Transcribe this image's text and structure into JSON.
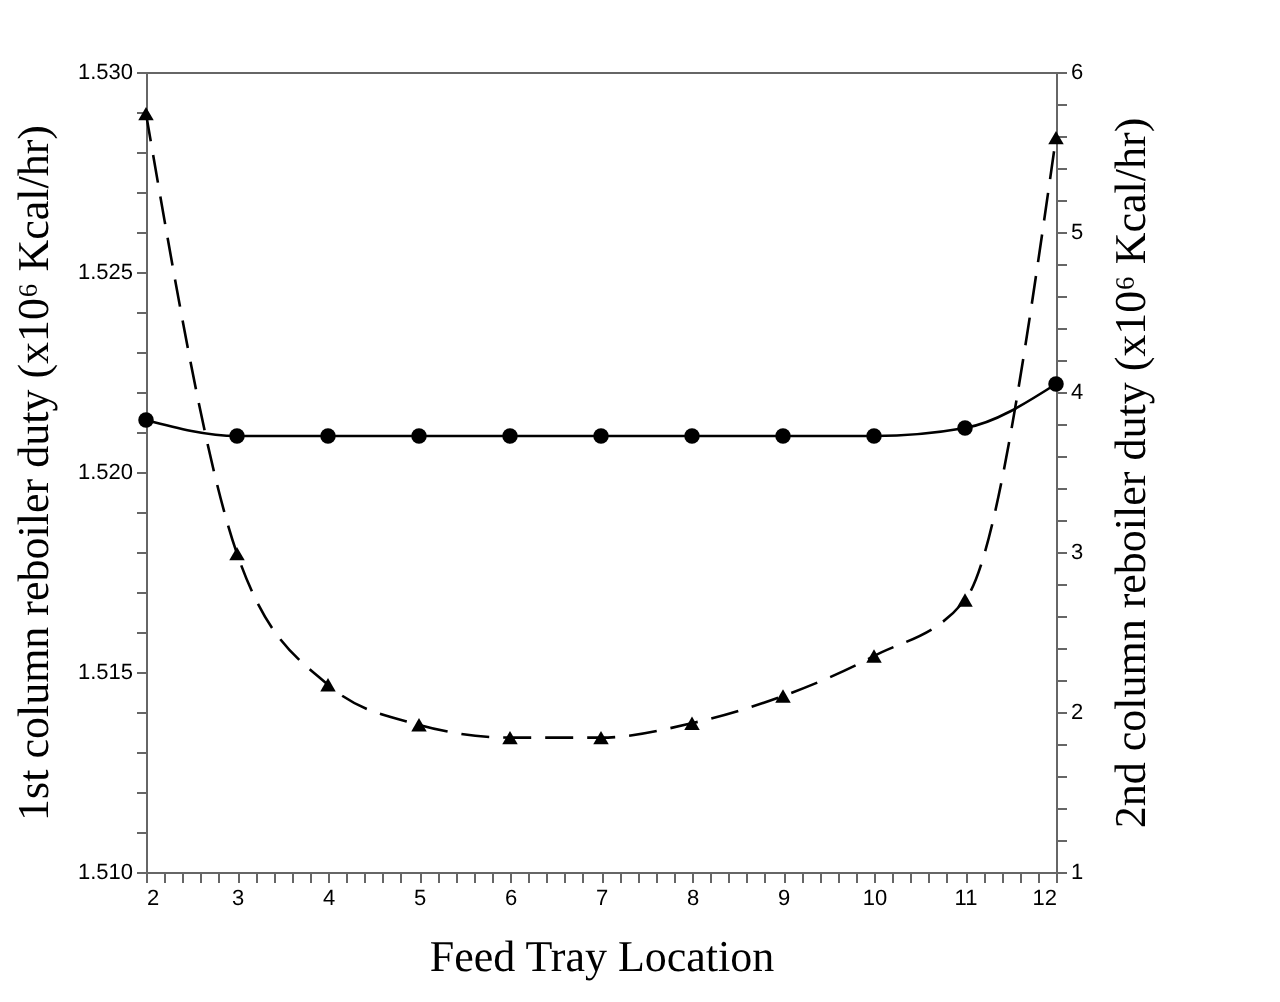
{
  "chart_data": {
    "type": "line",
    "xlabel": "Feed Tray Location",
    "ylabel": "1st column reboiler duty (x10⁶ Kcal/hr)",
    "y2label": "2nd column reboiler duty (x10⁶ Kcal/hr)",
    "x": [
      2,
      3,
      4,
      5,
      6,
      7,
      8,
      9,
      10,
      11,
      12
    ],
    "series": [
      {
        "color": "#000000",
        "marker": "circle",
        "line_style": "solid",
        "values": [
          1.5213,
          1.5209,
          1.5209,
          1.5209,
          1.5209,
          1.5209,
          1.5209,
          1.5209,
          1.5209,
          1.5211,
          1.5222
        ]
      },
      {
        "color": "#000000",
        "marker": "triangle",
        "line_style": "dashed",
        "axis": "y2",
        "values": [
          5.74,
          2.99,
          2.17,
          1.92,
          1.84,
          1.84,
          1.93,
          2.1,
          2.35,
          2.7,
          5.59
        ]
      }
    ],
    "xlim": [
      2,
      12
    ],
    "xticks": [
      2,
      {
        "value": 2.2,
        "label": null
      },
      {
        "value": 2.4,
        "label": null
      },
      {
        "value": 2.6,
        "label": null
      },
      {
        "value": 2.8,
        "label": null
      },
      3,
      {
        "value": 3.2,
        "label": null
      },
      {
        "value": 3.4,
        "label": null
      },
      {
        "value": 3.6,
        "label": null
      },
      {
        "value": 3.8,
        "label": null
      },
      4,
      {
        "value": 4.2,
        "label": null
      },
      {
        "value": 4.4,
        "label": null
      },
      {
        "value": 4.6,
        "label": null
      },
      {
        "value": 4.8,
        "label": null
      },
      5,
      {
        "value": 5.2,
        "label": null
      },
      {
        "value": 5.4,
        "label": null
      },
      {
        "value": 5.6,
        "label": null
      },
      {
        "value": 5.8,
        "label": null
      },
      6,
      {
        "value": 6.2,
        "label": null
      },
      {
        "value": 6.4,
        "label": null
      },
      {
        "value": 6.6,
        "label": null
      },
      {
        "value": 6.8,
        "label": null
      },
      7,
      {
        "value": 7.2,
        "label": null
      },
      {
        "value": 7.4,
        "label": null
      },
      {
        "value": 7.6,
        "label": null
      },
      {
        "value": 7.8,
        "label": null
      },
      8,
      {
        "value": 8.2,
        "label": null
      },
      {
        "value": 8.4,
        "label": null
      },
      {
        "value": 8.6,
        "label": null
      },
      {
        "value": 8.8,
        "label": null
      },
      9,
      {
        "value": 9.2,
        "label": null
      },
      {
        "value": 9.4,
        "label": null
      },
      {
        "value": 9.6,
        "label": null
      },
      {
        "value": 9.8,
        "label": null
      },
      10,
      {
        "value": 10.2,
        "label": null
      },
      {
        "value": 10.4,
        "label": null
      },
      {
        "value": 10.6,
        "label": null
      },
      {
        "value": 10.8,
        "label": null
      },
      11,
      {
        "value": 11.2,
        "label": null
      },
      {
        "value": 11.4,
        "label": null
      },
      {
        "value": 11.6,
        "label": null
      },
      {
        "value": 11.8,
        "label": null
      },
      12
    ],
    "ylim": [
      1.51,
      1.53
    ],
    "yticks": [
      {
        "value": 1.51,
        "label": "1.510"
      },
      {
        "value": 1.511,
        "label": null
      },
      {
        "value": 1.512,
        "label": null
      },
      {
        "value": 1.513,
        "label": null
      },
      {
        "value": 1.514,
        "label": null
      },
      {
        "value": 1.515,
        "label": "1.515"
      },
      {
        "value": 1.516,
        "label": null
      },
      {
        "value": 1.517,
        "label": null
      },
      {
        "value": 1.518,
        "label": null
      },
      {
        "value": 1.519,
        "label": null
      },
      {
        "value": 1.52,
        "label": "1.520"
      },
      {
        "value": 1.521,
        "label": null
      },
      {
        "value": 1.522,
        "label": null
      },
      {
        "value": 1.523,
        "label": null
      },
      {
        "value": 1.524,
        "label": null
      },
      {
        "value": 1.525,
        "label": "1.525"
      },
      {
        "value": 1.526,
        "label": null
      },
      {
        "value": 1.527,
        "label": null
      },
      {
        "value": 1.528,
        "label": null
      },
      {
        "value": 1.529,
        "label": null
      },
      {
        "value": 1.53,
        "label": "1.530"
      }
    ],
    "y2lim": [
      1,
      6
    ],
    "y2ticks": [
      1,
      {
        "value": 1.2,
        "label": null
      },
      {
        "value": 1.4,
        "label": null
      },
      {
        "value": 1.6,
        "label": null
      },
      {
        "value": 1.8,
        "label": null
      },
      2,
      {
        "value": 2.2,
        "label": null
      },
      {
        "value": 2.4,
        "label": null
      },
      {
        "value": 2.6,
        "label": null
      },
      {
        "value": 2.8,
        "label": null
      },
      3,
      {
        "value": 3.2,
        "label": null
      },
      {
        "value": 3.4,
        "label": null
      },
      {
        "value": 3.6,
        "label": null
      },
      {
        "value": 3.8,
        "label": null
      },
      4,
      {
        "value": 4.2,
        "label": null
      },
      {
        "value": 4.4,
        "label": null
      },
      {
        "value": 4.6,
        "label": null
      },
      {
        "value": 4.8,
        "label": null
      },
      5,
      {
        "value": 5.2,
        "label": null
      },
      {
        "value": 5.4,
        "label": null
      },
      {
        "value": 5.6,
        "label": null
      },
      {
        "value": 5.8,
        "label": null
      },
      6
    ],
    "grid": false
  }
}
